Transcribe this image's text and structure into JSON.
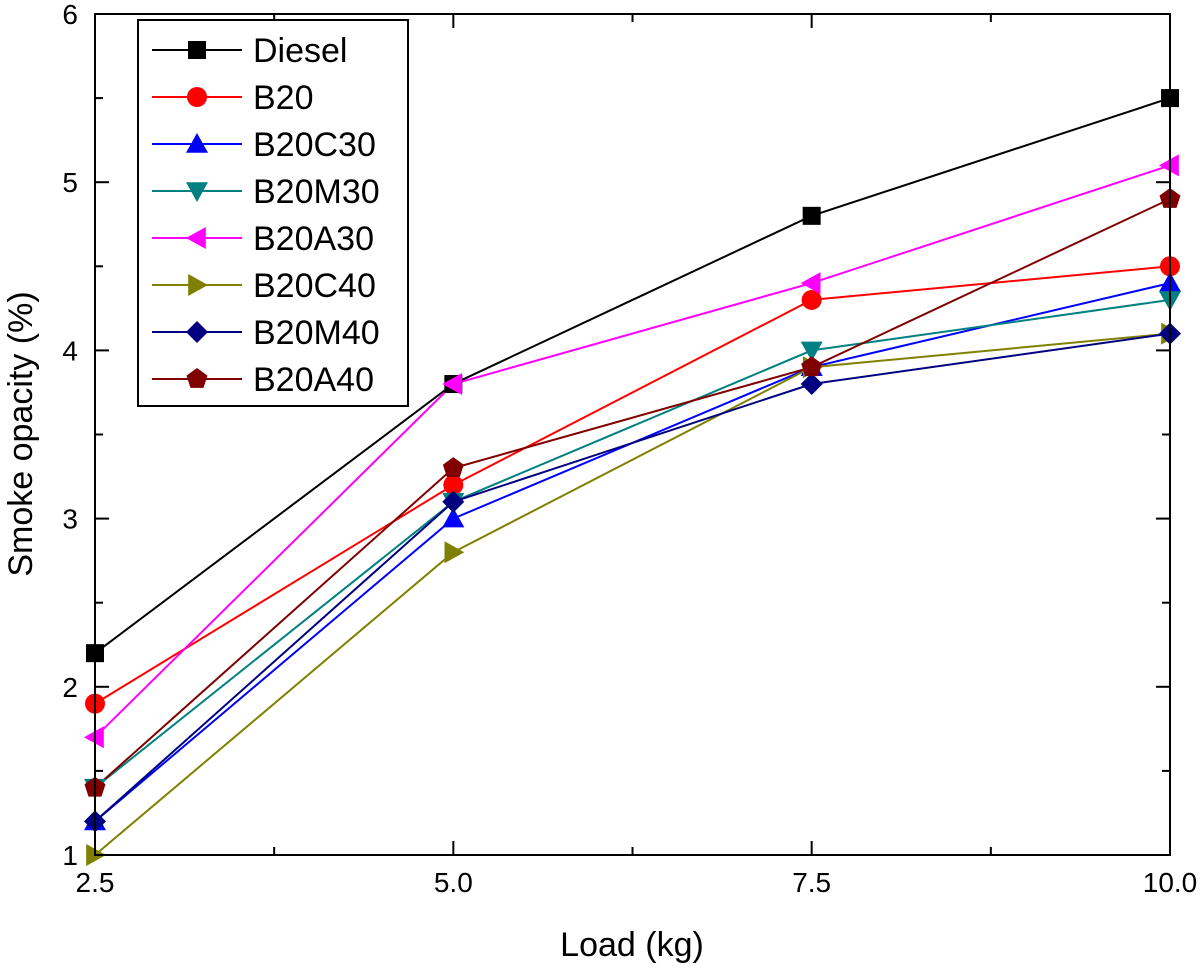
{
  "chart_data": {
    "type": "line",
    "title": "",
    "xlabel": "Load (kg)",
    "ylabel": "Smoke opacity (%)",
    "xlim": [
      2.5,
      10.0
    ],
    "ylim": [
      1,
      6
    ],
    "x": [
      2.5,
      5.0,
      7.5,
      10.0
    ],
    "x_tick_labels": [
      "2.5",
      "5.0",
      "7.5",
      "10.0"
    ],
    "x_minor_ticks": [
      3.75,
      6.25,
      8.75
    ],
    "y_ticks": [
      1,
      2,
      3,
      4,
      5,
      6
    ],
    "y_tick_labels": [
      "1",
      "2",
      "3",
      "4",
      "5",
      "6"
    ],
    "y_minor_ticks": [
      1.5,
      2.5,
      3.5,
      4.5,
      5.5
    ],
    "grid": false,
    "legend_position": "top-left",
    "series": [
      {
        "name": "Diesel",
        "color": "#000000",
        "marker": "square",
        "values": [
          2.2,
          3.8,
          4.8,
          5.5
        ]
      },
      {
        "name": "B20",
        "color": "#ff0000",
        "marker": "circle",
        "values": [
          1.9,
          3.2,
          4.3,
          4.5
        ]
      },
      {
        "name": "B20C30",
        "color": "#0000ff",
        "marker": "triangle-up",
        "values": [
          1.2,
          3.0,
          3.9,
          4.4
        ]
      },
      {
        "name": "B20M30",
        "color": "#008080",
        "marker": "triangle-down",
        "values": [
          1.4,
          3.1,
          4.0,
          4.3
        ]
      },
      {
        "name": "B20A30",
        "color": "#ff00ff",
        "marker": "triangle-left",
        "values": [
          1.7,
          3.8,
          4.4,
          5.1
        ]
      },
      {
        "name": "B20C40",
        "color": "#808000",
        "marker": "triangle-right",
        "values": [
          1.0,
          2.8,
          3.9,
          4.1
        ]
      },
      {
        "name": "B20M40",
        "color": "#000080",
        "marker": "diamond",
        "values": [
          1.2,
          3.1,
          3.8,
          4.1
        ]
      },
      {
        "name": "B20A40",
        "color": "#800000",
        "marker": "pentagon",
        "values": [
          1.4,
          3.3,
          3.9,
          4.9
        ]
      }
    ]
  }
}
